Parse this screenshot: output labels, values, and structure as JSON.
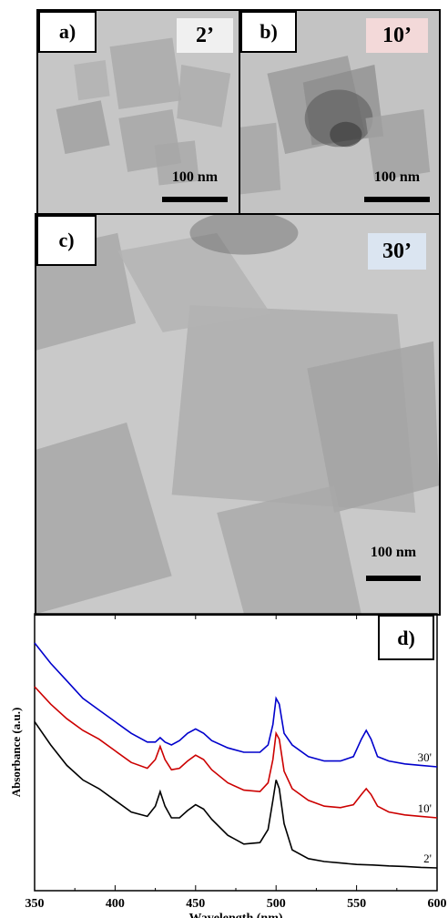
{
  "panels": {
    "a": {
      "label": "a)",
      "time": "2’",
      "time_bg": "#f0f0f0",
      "scale": "100 nm"
    },
    "b": {
      "label": "b)",
      "time": "10’",
      "time_bg": "#f3d9d9",
      "scale": "100 nm"
    },
    "c": {
      "label": "c)",
      "time": "30’",
      "time_bg": "#dbe5f1",
      "scale": "100 nm"
    }
  },
  "chart_data": {
    "type": "line",
    "panel_label": "d)",
    "xlabel": "Wavelength (nm)",
    "ylabel": "Absorbance (a.u.)",
    "xlim": [
      350,
      600
    ],
    "x_ticks": [
      "350",
      "400",
      "450",
      "500",
      "550",
      "600"
    ],
    "y_ticks_labeled": false,
    "grid": false,
    "series": [
      {
        "name": "30'",
        "color": "#0000cc",
        "x": [
          350,
          360,
          370,
          380,
          390,
          400,
          410,
          420,
          425,
          428,
          431,
          435,
          440,
          445,
          450,
          455,
          460,
          470,
          480,
          490,
          495,
          498,
          500,
          502,
          505,
          510,
          520,
          530,
          540,
          548,
          553,
          556,
          559,
          563,
          570,
          580,
          590,
          600
        ],
        "y": [
          0.95,
          0.88,
          0.82,
          0.76,
          0.72,
          0.68,
          0.64,
          0.61,
          0.61,
          0.625,
          0.61,
          0.6,
          0.615,
          0.64,
          0.655,
          0.64,
          0.615,
          0.59,
          0.575,
          0.575,
          0.6,
          0.67,
          0.76,
          0.74,
          0.64,
          0.6,
          0.56,
          0.545,
          0.545,
          0.56,
          0.62,
          0.65,
          0.62,
          0.56,
          0.545,
          0.535,
          0.53,
          0.525
        ]
      },
      {
        "name": "10'",
        "color": "#cc0000",
        "x": [
          350,
          360,
          370,
          380,
          390,
          400,
          410,
          420,
          425,
          428,
          431,
          435,
          440,
          445,
          450,
          455,
          460,
          470,
          480,
          490,
          495,
          498,
          500,
          502,
          505,
          510,
          520,
          530,
          540,
          548,
          553,
          556,
          559,
          563,
          570,
          580,
          590,
          600
        ],
        "y": [
          0.8,
          0.74,
          0.69,
          0.65,
          0.62,
          0.58,
          0.54,
          0.52,
          0.55,
          0.595,
          0.55,
          0.515,
          0.52,
          0.545,
          0.565,
          0.55,
          0.515,
          0.47,
          0.445,
          0.44,
          0.47,
          0.55,
          0.64,
          0.62,
          0.51,
          0.45,
          0.41,
          0.39,
          0.385,
          0.395,
          0.43,
          0.45,
          0.43,
          0.39,
          0.37,
          0.36,
          0.355,
          0.35
        ]
      },
      {
        "name": "2'",
        "color": "#000000",
        "x": [
          350,
          360,
          370,
          380,
          390,
          400,
          410,
          420,
          425,
          428,
          431,
          435,
          440,
          445,
          450,
          455,
          460,
          470,
          480,
          490,
          495,
          498,
          500,
          502,
          505,
          510,
          520,
          530,
          540,
          550,
          560,
          570,
          580,
          590,
          600
        ],
        "y": [
          0.68,
          0.6,
          0.53,
          0.48,
          0.45,
          0.41,
          0.37,
          0.355,
          0.39,
          0.44,
          0.39,
          0.35,
          0.35,
          0.375,
          0.395,
          0.38,
          0.345,
          0.29,
          0.26,
          0.265,
          0.31,
          0.41,
          0.48,
          0.45,
          0.33,
          0.24,
          0.21,
          0.2,
          0.195,
          0.19,
          0.188,
          0.185,
          0.183,
          0.18,
          0.178
        ]
      }
    ]
  }
}
